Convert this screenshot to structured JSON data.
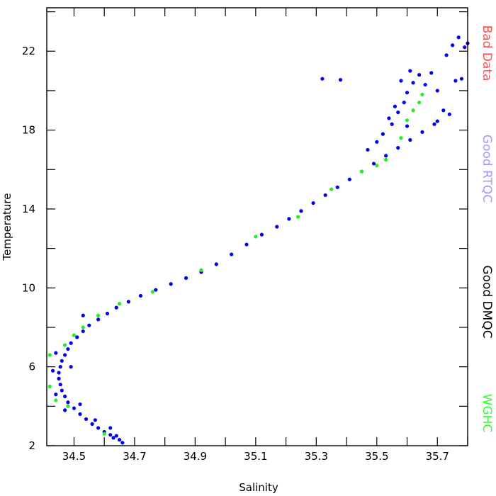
{
  "chart_data": {
    "type": "scatter",
    "xlabel": "Salinity",
    "ylabel": "Temperature",
    "xlim": [
      34.41,
      35.8
    ],
    "ylim": [
      2,
      24.2
    ],
    "xticks": [
      34.5,
      34.7,
      34.9,
      35.1,
      35.3,
      35.5,
      35.7
    ],
    "xtick_labels": [
      "34.5",
      "34.7",
      "34.9",
      "35.1",
      "35.3",
      "35.5",
      "35.7"
    ],
    "yticks": [
      2,
      6,
      10,
      14,
      18,
      22
    ],
    "ytick_labels": [
      "2",
      "6",
      "10",
      "14",
      "18",
      "22"
    ],
    "grid": false,
    "legend_position": "right",
    "legend": [
      {
        "label": "Bad Data",
        "color": "#ff4d4d"
      },
      {
        "label": "Good RTQC",
        "color": "#9999ff"
      },
      {
        "label": "Good DMQC",
        "color": "#000000"
      },
      {
        "label": "WGHC",
        "color": "#33ff33"
      }
    ],
    "series": [
      {
        "name": "Good DMQC",
        "color": "#0000ee",
        "points": [
          [
            34.66,
            2.15
          ],
          [
            34.65,
            2.3
          ],
          [
            34.63,
            2.4
          ],
          [
            34.62,
            2.55
          ],
          [
            34.6,
            2.7
          ],
          [
            34.58,
            2.9
          ],
          [
            34.56,
            3.1
          ],
          [
            34.54,
            3.35
          ],
          [
            34.52,
            3.6
          ],
          [
            34.5,
            3.9
          ],
          [
            34.48,
            4.2
          ],
          [
            34.47,
            4.5
          ],
          [
            34.46,
            4.8
          ],
          [
            34.455,
            5.1
          ],
          [
            34.45,
            5.4
          ],
          [
            34.45,
            5.7
          ],
          [
            34.455,
            6.0
          ],
          [
            34.46,
            6.3
          ],
          [
            34.47,
            6.6
          ],
          [
            34.48,
            6.9
          ],
          [
            34.49,
            7.2
          ],
          [
            34.51,
            7.5
          ],
          [
            34.53,
            7.8
          ],
          [
            34.55,
            8.1
          ],
          [
            34.58,
            8.4
          ],
          [
            34.61,
            8.7
          ],
          [
            34.64,
            9.0
          ],
          [
            34.68,
            9.3
          ],
          [
            34.72,
            9.6
          ],
          [
            34.77,
            9.9
          ],
          [
            34.82,
            10.2
          ],
          [
            34.87,
            10.5
          ],
          [
            34.92,
            10.8
          ],
          [
            34.97,
            11.2
          ],
          [
            35.02,
            11.7
          ],
          [
            35.07,
            12.2
          ],
          [
            35.12,
            12.7
          ],
          [
            35.17,
            13.1
          ],
          [
            35.21,
            13.5
          ],
          [
            35.25,
            13.9
          ],
          [
            35.29,
            14.3
          ],
          [
            35.33,
            14.7
          ],
          [
            35.37,
            15.1
          ],
          [
            35.41,
            15.5
          ],
          [
            35.45,
            15.9
          ],
          [
            35.49,
            16.3
          ],
          [
            35.53,
            16.7
          ],
          [
            35.57,
            17.1
          ],
          [
            35.61,
            17.5
          ],
          [
            35.65,
            17.9
          ],
          [
            35.69,
            18.3
          ],
          [
            35.7,
            18.45
          ],
          [
            35.47,
            17.0
          ],
          [
            35.5,
            17.4
          ],
          [
            35.52,
            17.8
          ],
          [
            35.55,
            18.3
          ],
          [
            35.57,
            18.9
          ],
          [
            35.59,
            19.4
          ],
          [
            35.6,
            19.9
          ],
          [
            35.62,
            20.4
          ],
          [
            35.64,
            20.8
          ],
          [
            35.66,
            20.3
          ],
          [
            35.68,
            20.9
          ],
          [
            35.7,
            20.0
          ],
          [
            35.73,
            21.8
          ],
          [
            35.75,
            22.3
          ],
          [
            35.77,
            22.7
          ],
          [
            35.79,
            22.2
          ],
          [
            35.78,
            20.6
          ],
          [
            35.8,
            22.4
          ],
          [
            35.32,
            20.6
          ],
          [
            35.38,
            20.55
          ],
          [
            35.56,
            19.2
          ],
          [
            35.54,
            18.6
          ],
          [
            35.58,
            20.5
          ],
          [
            35.61,
            21.0
          ],
          [
            35.76,
            20.5
          ],
          [
            35.72,
            19.0
          ],
          [
            35.74,
            18.8
          ],
          [
            35.6,
            18.2
          ],
          [
            34.43,
            5.8
          ],
          [
            34.44,
            4.6
          ],
          [
            34.47,
            3.8
          ],
          [
            34.52,
            4.1
          ],
          [
            34.57,
            3.3
          ],
          [
            34.62,
            2.9
          ],
          [
            34.64,
            2.5
          ],
          [
            34.44,
            6.7
          ],
          [
            34.49,
            6.0
          ],
          [
            34.53,
            8.6
          ]
        ]
      },
      {
        "name": "WGHC",
        "color": "#22ee22",
        "points": [
          [
            34.42,
            6.6
          ],
          [
            34.42,
            5.0
          ],
          [
            34.44,
            4.3
          ],
          [
            34.48,
            4.0
          ],
          [
            34.47,
            7.1
          ],
          [
            34.5,
            7.6
          ],
          [
            34.53,
            8.0
          ],
          [
            34.58,
            8.6
          ],
          [
            34.65,
            9.2
          ],
          [
            34.76,
            9.8
          ],
          [
            34.92,
            10.9
          ],
          [
            35.1,
            12.6
          ],
          [
            35.24,
            13.6
          ],
          [
            35.35,
            15.0
          ],
          [
            35.45,
            15.9
          ],
          [
            35.5,
            16.2
          ],
          [
            35.53,
            16.5
          ],
          [
            35.58,
            17.6
          ],
          [
            35.6,
            18.5
          ],
          [
            35.62,
            19.0
          ],
          [
            35.64,
            19.4
          ],
          [
            35.65,
            19.8
          ],
          [
            34.6,
            2.6
          ]
        ]
      }
    ]
  }
}
